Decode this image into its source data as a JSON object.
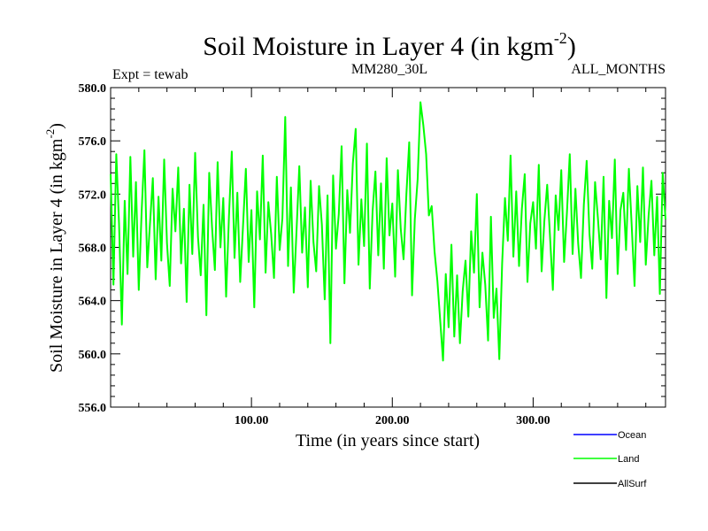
{
  "header": {
    "title_main": "Soil Moisture in Layer 4 (in kgm",
    "title_sup": "-2",
    "title_close": ")",
    "left_label": "Expt = tewab",
    "center_label": "MM280_30L",
    "right_label": "ALL_MONTHS"
  },
  "axes": {
    "xlabel": "Time (in years since start)",
    "ylabel_main": "Soil Moisture in Layer 4 (in kgm",
    "ylabel_sup": "-2",
    "ylabel_close": ")"
  },
  "legend": {
    "items": [
      {
        "name": "Ocean",
        "color": "#0000ff"
      },
      {
        "name": "Land",
        "color": "#00ff00"
      },
      {
        "name": "AllSurf",
        "color": "#000000"
      }
    ]
  },
  "chart_data": {
    "type": "line",
    "xlim": [
      0,
      394
    ],
    "ylim": [
      556.0,
      580.0
    ],
    "x_ticks": [
      {
        "value": 100,
        "label": "100.00"
      },
      {
        "value": 200,
        "label": "200.00"
      },
      {
        "value": 300,
        "label": "300.00"
      }
    ],
    "y_ticks": [
      {
        "value": 556,
        "label": "556.0"
      },
      {
        "value": 560,
        "label": "560.0"
      },
      {
        "value": 564,
        "label": "564.0"
      },
      {
        "value": 568,
        "label": "568.0"
      },
      {
        "value": 572,
        "label": "572.0"
      },
      {
        "value": 576,
        "label": "576.0"
      },
      {
        "value": 580,
        "label": "580.0"
      }
    ],
    "grid": false,
    "legend_position": "bottom-right",
    "series": [
      {
        "name": "Land",
        "color": "#00ff00",
        "x": [
          0,
          2,
          4,
          6,
          8,
          10,
          12,
          14,
          16,
          18,
          20,
          22,
          24,
          26,
          28,
          30,
          32,
          34,
          36,
          38,
          40,
          42,
          44,
          46,
          48,
          50,
          52,
          54,
          56,
          58,
          60,
          62,
          64,
          66,
          68,
          70,
          72,
          74,
          76,
          78,
          80,
          82,
          84,
          86,
          88,
          90,
          92,
          94,
          96,
          98,
          100,
          102,
          104,
          106,
          108,
          110,
          112,
          114,
          116,
          118,
          120,
          122,
          124,
          126,
          128,
          130,
          132,
          134,
          136,
          138,
          140,
          142,
          144,
          146,
          148,
          150,
          152,
          154,
          156,
          158,
          160,
          162,
          164,
          166,
          168,
          170,
          172,
          174,
          176,
          178,
          180,
          182,
          184,
          186,
          188,
          190,
          192,
          194,
          196,
          198,
          200,
          202,
          204,
          206,
          208,
          210,
          212,
          214,
          216,
          218,
          220,
          222,
          224,
          226,
          228,
          230,
          232,
          234,
          236,
          238,
          240,
          242,
          244,
          246,
          248,
          250,
          252,
          254,
          256,
          258,
          260,
          262,
          264,
          266,
          268,
          270,
          272,
          274,
          276,
          278,
          280,
          282,
          284,
          286,
          288,
          290,
          292,
          294,
          296,
          298,
          300,
          302,
          304,
          306,
          308,
          310,
          312,
          314,
          316,
          318,
          320,
          322,
          324,
          326,
          328,
          330,
          332,
          334,
          336,
          338,
          340,
          342,
          344,
          346,
          348,
          350,
          352,
          354,
          356,
          358,
          360,
          362,
          364,
          366,
          368,
          370,
          372,
          374,
          376,
          378,
          380,
          382,
          384,
          386,
          388,
          390,
          392,
          394
        ],
        "values": [
          573.5,
          565.2,
          575.0,
          569.8,
          562.2,
          571.5,
          566.0,
          574.8,
          567.3,
          572.9,
          564.8,
          570.6,
          575.3,
          566.5,
          569.9,
          573.2,
          565.6,
          571.8,
          567.0,
          574.6,
          568.3,
          565.1,
          572.4,
          569.2,
          574.0,
          566.8,
          570.9,
          563.9,
          572.7,
          567.5,
          575.1,
          568.8,
          565.9,
          571.2,
          562.9,
          573.6,
          569.5,
          566.3,
          574.4,
          568.0,
          571.7,
          564.3,
          570.3,
          575.2,
          567.2,
          572.1,
          565.4,
          569.6,
          573.9,
          566.9,
          570.8,
          563.5,
          572.2,
          568.6,
          574.9,
          566.1,
          571.4,
          569.0,
          565.7,
          573.3,
          567.8,
          570.2,
          577.8,
          566.6,
          572.5,
          564.6,
          569.3,
          574.1,
          567.6,
          571.0,
          565.0,
          573.0,
          568.4,
          566.2,
          572.6,
          569.7,
          564.1,
          571.9,
          560.8,
          573.4,
          567.9,
          570.5,
          575.6,
          565.3,
          572.3,
          569.1,
          574.3,
          576.9,
          566.7,
          571.6,
          568.1,
          575.8,
          564.9,
          570.7,
          573.7,
          567.4,
          572.8,
          566.4,
          574.7,
          568.9,
          571.3,
          565.8,
          573.8,
          569.4,
          567.1,
          572.0,
          575.9,
          564.4,
          570.1,
          573.1,
          578.9,
          577.2,
          575.0,
          570.4,
          571.1,
          567.7,
          565.5,
          562.5,
          559.5,
          566.0,
          562.0,
          568.2,
          561.3,
          565.9,
          560.8,
          564.7,
          567.0,
          562.8,
          569.2,
          566.1,
          572.0,
          563.5,
          567.6,
          565.2,
          561.0,
          570.3,
          562.7,
          564.9,
          559.6,
          566.8,
          571.7,
          568.5,
          574.9,
          567.3,
          572.2,
          566.6,
          570.9,
          573.5,
          565.4,
          569.8,
          571.4,
          567.9,
          574.2,
          566.2,
          570.0,
          572.7,
          568.8,
          564.8,
          571.9,
          569.3,
          573.8,
          566.9,
          570.6,
          575.0,
          567.5,
          572.4,
          568.3,
          565.7,
          571.2,
          574.5,
          569.0,
          566.4,
          572.9,
          570.2,
          567.1,
          573.3,
          564.2,
          571.5,
          568.7,
          574.6,
          566.0,
          570.8,
          572.1,
          567.8,
          573.9,
          569.6,
          565.1,
          572.6,
          568.4,
          574.0,
          566.7,
          570.4,
          573.0,
          567.4,
          571.8,
          564.5,
          573.6,
          570.1
        ]
      }
    ]
  }
}
